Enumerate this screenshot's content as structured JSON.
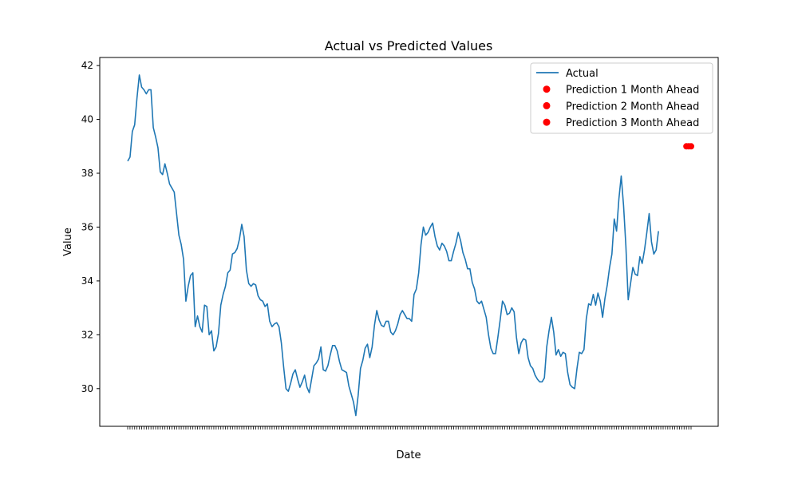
{
  "chart_data": {
    "type": "line",
    "title": "Actual vs Predicted Values",
    "xlabel": "Date",
    "ylabel": "Value",
    "ylim": [
      28.6,
      42.3
    ],
    "y_ticks": [
      30,
      32,
      34,
      36,
      38,
      40,
      42
    ],
    "grid": false,
    "legend_position": "top-right",
    "colors": {
      "actual": "#1f77b4",
      "prediction": "#ff0000"
    },
    "series": [
      {
        "name": "Actual",
        "style": "line",
        "color": "#1f77b4",
        "values": [
          38.45,
          38.6,
          39.55,
          39.8,
          40.8,
          41.65,
          41.2,
          41.1,
          40.95,
          41.1,
          41.1,
          39.7,
          39.35,
          38.95,
          38.05,
          37.95,
          38.35,
          38.0,
          37.6,
          37.45,
          37.3,
          36.5,
          35.7,
          35.35,
          34.8,
          33.25,
          33.8,
          34.2,
          34.3,
          32.3,
          32.7,
          32.3,
          32.1,
          33.1,
          33.05,
          32.0,
          32.15,
          31.4,
          31.55,
          32.05,
          33.1,
          33.5,
          33.8,
          34.3,
          34.4,
          35.0,
          35.05,
          35.2,
          35.55,
          36.1,
          35.65,
          34.4,
          33.9,
          33.8,
          33.9,
          33.85,
          33.45,
          33.3,
          33.25,
          33.05,
          33.15,
          32.5,
          32.3,
          32.4,
          32.45,
          32.3,
          31.7,
          30.8,
          30.0,
          29.9,
          30.2,
          30.55,
          30.7,
          30.35,
          30.05,
          30.25,
          30.5,
          30.05,
          29.85,
          30.35,
          30.85,
          30.95,
          31.1,
          31.55,
          30.7,
          30.65,
          30.85,
          31.25,
          31.6,
          31.6,
          31.4,
          31.0,
          30.7,
          30.65,
          30.6,
          30.1,
          29.8,
          29.5,
          29.0,
          29.75,
          30.75,
          31.05,
          31.5,
          31.65,
          31.15,
          31.55,
          32.35,
          32.9,
          32.55,
          32.35,
          32.3,
          32.5,
          32.5,
          32.1,
          32.0,
          32.15,
          32.4,
          32.75,
          32.9,
          32.75,
          32.6,
          32.6,
          32.5,
          33.5,
          33.7,
          34.3,
          35.35,
          36.0,
          35.7,
          35.8,
          36.0,
          36.15,
          35.65,
          35.3,
          35.15,
          35.4,
          35.3,
          35.1,
          34.75,
          34.75,
          35.1,
          35.4,
          35.8,
          35.5,
          35.05,
          34.8,
          34.45,
          34.45,
          33.95,
          33.7,
          33.25,
          33.15,
          33.25,
          32.95,
          32.65,
          32.0,
          31.5,
          31.3,
          31.3,
          31.9,
          32.55,
          33.25,
          33.1,
          32.75,
          32.8,
          33.0,
          32.85,
          31.9,
          31.3,
          31.7,
          31.85,
          31.8,
          31.15,
          30.85,
          30.75,
          30.5,
          30.35,
          30.25,
          30.25,
          30.4,
          31.55,
          32.15,
          32.65,
          32.1,
          31.25,
          31.45,
          31.2,
          31.35,
          31.3,
          30.6,
          30.15,
          30.05,
          30.0,
          30.75,
          31.35,
          31.3,
          31.45,
          32.6,
          33.15,
          33.1,
          33.5,
          33.1,
          33.55,
          33.25,
          32.65,
          33.35,
          33.85,
          34.5,
          35.0,
          36.3,
          35.85,
          37.05,
          37.9,
          36.8,
          35.3,
          33.3,
          33.9,
          34.5,
          34.25,
          34.2,
          34.9,
          34.65,
          35.15,
          35.8,
          36.5,
          35.45,
          35.0,
          35.15,
          35.85
        ]
      },
      {
        "name": "Prediction 1 Month Ahead",
        "style": "scatter",
        "color": "#ff0000",
        "points": [
          {
            "i": 240,
            "value": 39.0
          }
        ]
      },
      {
        "name": "Prediction 2 Month Ahead",
        "style": "scatter",
        "color": "#ff0000",
        "points": [
          {
            "i": 241,
            "value": 39.0
          }
        ]
      },
      {
        "name": "Prediction 3 Month Ahead",
        "style": "scatter",
        "color": "#ff0000",
        "points": [
          {
            "i": 242,
            "value": 39.0
          }
        ]
      }
    ]
  }
}
